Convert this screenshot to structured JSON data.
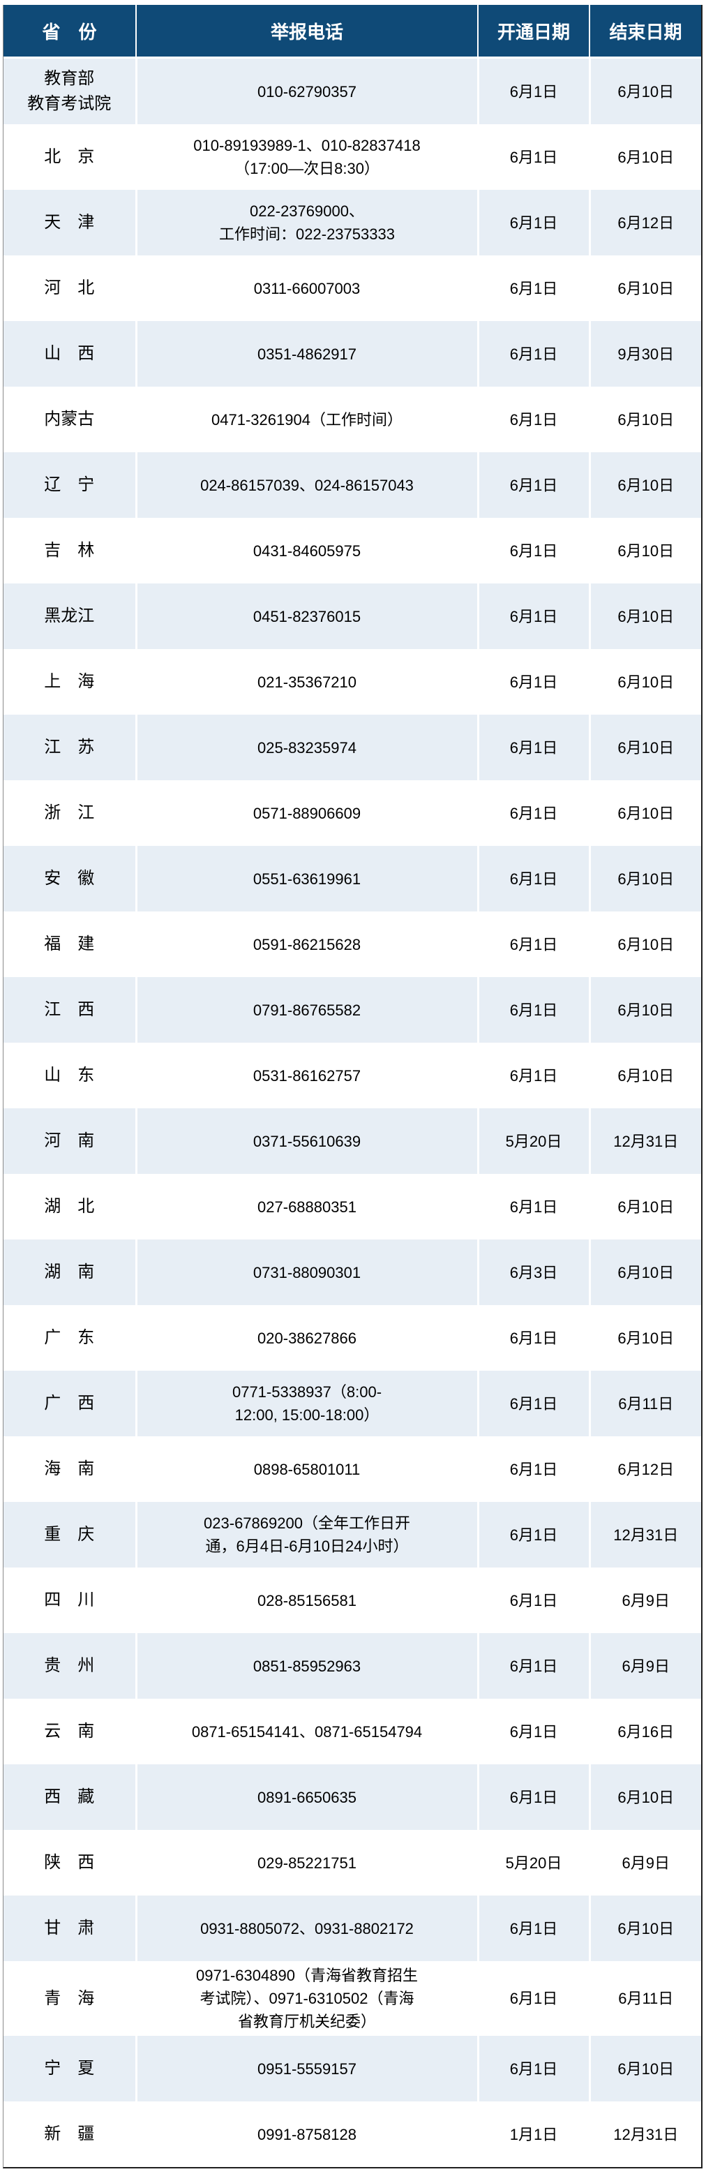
{
  "colors": {
    "header_bg": "#0f4a77",
    "stripe_bg": "#e7eef5",
    "row_bg": "#ffffff",
    "header_text": "#ffffff",
    "body_text": "#000000"
  },
  "table": {
    "headers": [
      "省　份",
      "举报电话",
      "开通日期",
      "结束日期"
    ],
    "rows": [
      {
        "province": "教育部\n教育考试院",
        "phone": "010-62790357",
        "open": "6月1日",
        "close": "6月10日"
      },
      {
        "province": "北　京",
        "phone": "010-89193989-1、010-82837418\n（17:00—次日8:30）",
        "open": "6月1日",
        "close": "6月10日"
      },
      {
        "province": "天　津",
        "phone": "022-23769000、\n工作时间：022-23753333",
        "open": "6月1日",
        "close": "6月12日"
      },
      {
        "province": "河　北",
        "phone": "0311-66007003",
        "open": "6月1日",
        "close": "6月10日"
      },
      {
        "province": "山　西",
        "phone": "0351-4862917",
        "open": "6月1日",
        "close": "9月30日"
      },
      {
        "province": "内蒙古",
        "phone": "0471-3261904（工作时间）",
        "open": "6月1日",
        "close": "6月10日"
      },
      {
        "province": "辽　宁",
        "phone": "024-86157039、024-86157043",
        "open": "6月1日",
        "close": "6月10日"
      },
      {
        "province": "吉　林",
        "phone": "0431-84605975",
        "open": "6月1日",
        "close": "6月10日"
      },
      {
        "province": "黑龙江",
        "phone": "0451-82376015",
        "open": "6月1日",
        "close": "6月10日"
      },
      {
        "province": "上　海",
        "phone": "021-35367210",
        "open": "6月1日",
        "close": "6月10日"
      },
      {
        "province": "江　苏",
        "phone": "025-83235974",
        "open": "6月1日",
        "close": "6月10日"
      },
      {
        "province": "浙　江",
        "phone": "0571-88906609",
        "open": "6月1日",
        "close": "6月10日"
      },
      {
        "province": "安　徽",
        "phone": "0551-63619961",
        "open": "6月1日",
        "close": "6月10日"
      },
      {
        "province": "福　建",
        "phone": "0591-86215628",
        "open": "6月1日",
        "close": "6月10日"
      },
      {
        "province": "江　西",
        "phone": "0791-86765582",
        "open": "6月1日",
        "close": "6月10日"
      },
      {
        "province": "山　东",
        "phone": "0531-86162757",
        "open": "6月1日",
        "close": "6月10日"
      },
      {
        "province": "河　南",
        "phone": "0371-55610639",
        "open": "5月20日",
        "close": "12月31日"
      },
      {
        "province": "湖　北",
        "phone": "027-68880351",
        "open": "6月1日",
        "close": "6月10日"
      },
      {
        "province": "湖　南",
        "phone": "0731-88090301",
        "open": "6月3日",
        "close": "6月10日"
      },
      {
        "province": "广　东",
        "phone": "020-38627866",
        "open": "6月1日",
        "close": "6月10日"
      },
      {
        "province": "广　西",
        "phone": "0771-5338937（8:00-\n12:00, 15:00-18:00）",
        "open": "6月1日",
        "close": "6月11日"
      },
      {
        "province": "海　南",
        "phone": "0898-65801011",
        "open": "6月1日",
        "close": "6月12日"
      },
      {
        "province": "重　庆",
        "phone": "023-67869200（全年工作日开\n通，6月4日-6月10日24小时）",
        "open": "6月1日",
        "close": "12月31日"
      },
      {
        "province": "四　川",
        "phone": "028-85156581",
        "open": "6月1日",
        "close": "6月9日"
      },
      {
        "province": "贵　州",
        "phone": "0851-85952963",
        "open": "6月1日",
        "close": "6月9日"
      },
      {
        "province": "云　南",
        "phone": "0871-65154141、0871-65154794",
        "open": "6月1日",
        "close": "6月16日"
      },
      {
        "province": "西　藏",
        "phone": "0891-6650635",
        "open": "6月1日",
        "close": "6月10日"
      },
      {
        "province": "陕　西",
        "phone": "029-85221751",
        "open": "5月20日",
        "close": "6月9日"
      },
      {
        "province": "甘　肃",
        "phone": "0931-8805072、0931-8802172",
        "open": "6月1日",
        "close": "6月10日"
      },
      {
        "province": "青　海",
        "phone": "0971-6304890（青海省教育招生\n考试院）、0971-6310502（青海\n省教育厅机关纪委）",
        "open": "6月1日",
        "close": "6月11日"
      },
      {
        "province": "宁　夏",
        "phone": "0951-5559157",
        "open": "6月1日",
        "close": "6月10日"
      },
      {
        "province": "新　疆",
        "phone": "0991-8758128",
        "open": "1月1日",
        "close": "12月31日"
      }
    ]
  }
}
